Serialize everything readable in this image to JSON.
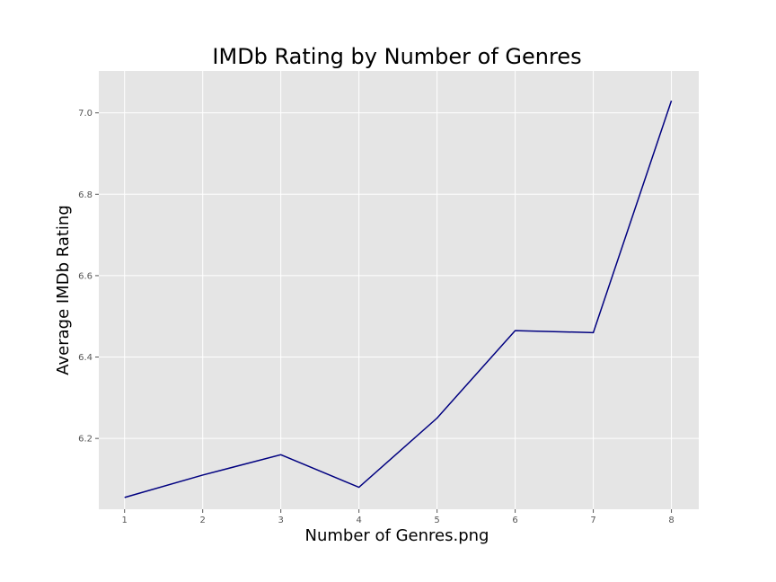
{
  "chart_data": {
    "type": "line",
    "title": "IMDb Rating by Number of Genres",
    "xlabel": "Number of Genres.png",
    "ylabel": "Average IMDb Rating",
    "x": [
      1,
      2,
      3,
      4,
      5,
      6,
      7,
      8
    ],
    "series": [
      {
        "values": [
          6.055,
          6.11,
          6.16,
          6.08,
          6.25,
          6.465,
          6.46,
          7.03
        ]
      }
    ],
    "x_ticks": [
      "1",
      "2",
      "3",
      "4",
      "5",
      "6",
      "7",
      "8"
    ],
    "y_ticks": [
      "6.2",
      "6.4",
      "6.6",
      "6.8",
      "7.0"
    ],
    "xlim": [
      0.67,
      8.35
    ],
    "ylim": [
      6.026,
      7.103
    ],
    "grid": true,
    "style": "ggplot",
    "colors": {
      "line": "#000080",
      "plot_background": "#e5e5e5",
      "grid": "#ffffff",
      "tick_text": "#555555"
    }
  }
}
